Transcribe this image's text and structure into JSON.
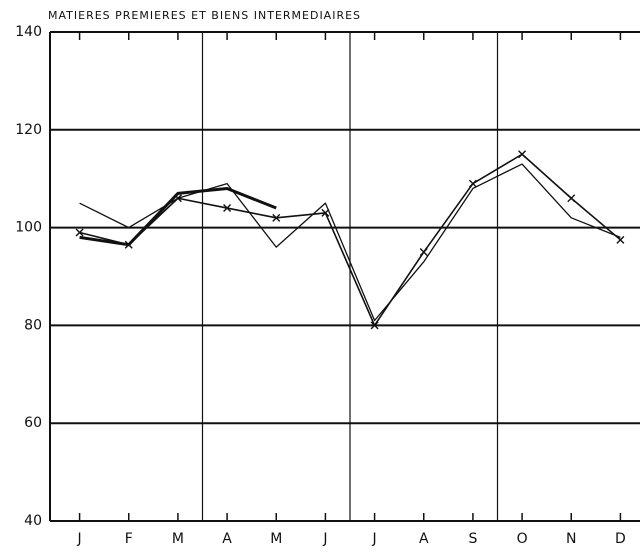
{
  "chart_data": {
    "type": "line",
    "title": "MATIERES PREMIERES ET BIENS INTERMEDIAIRES",
    "categories": [
      "J",
      "F",
      "M",
      "A",
      "M",
      "J",
      "J",
      "A",
      "S",
      "O",
      "N",
      "D"
    ],
    "series": [
      {
        "color": "#111111",
        "values": [
          105,
          100,
          106,
          109,
          96,
          105,
          81,
          93,
          108,
          113,
          102,
          98
        ]
      },
      {
        "color": "#111111",
        "values": [
          99,
          96.5,
          106,
          104,
          102,
          103,
          80,
          95,
          109,
          115,
          106,
          97.5
        ]
      },
      {
        "color": "#111111",
        "values": [
          98,
          96.5,
          107,
          108,
          104,
          null,
          null,
          null,
          null,
          null,
          null,
          null
        ]
      }
    ],
    "ylim": [
      40,
      140
    ],
    "yticks": [
      40,
      60,
      80,
      100,
      120,
      140
    ],
    "grid": true
  }
}
